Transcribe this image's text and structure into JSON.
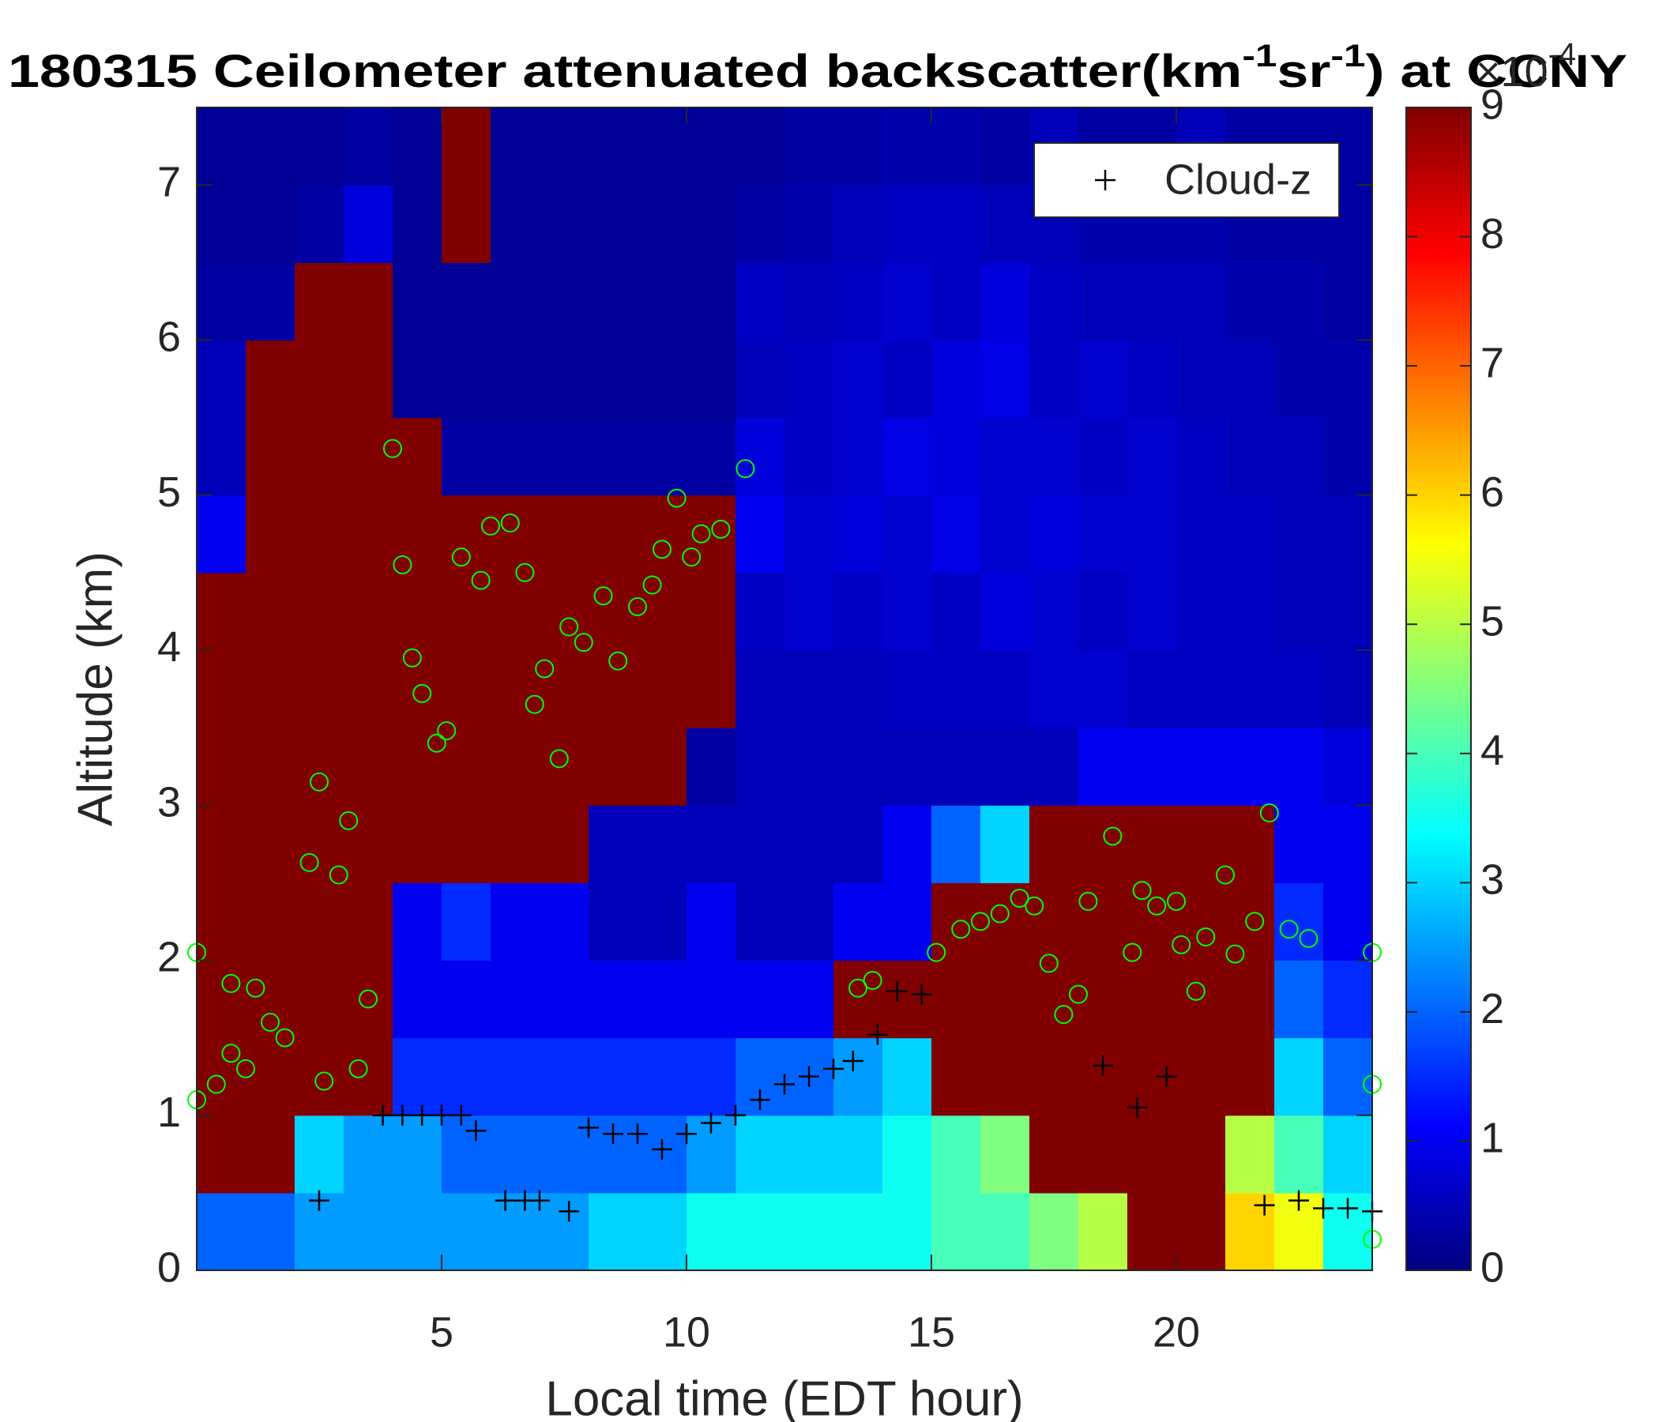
{
  "chart_data": {
    "type": "heatmap",
    "title_parts": [
      "180315 Ceilometer attenuated backscatter(km",
      "-1",
      "sr",
      "-1",
      ") at CCNY"
    ],
    "xlabel": "Local time (EDT hour)",
    "ylabel": "Altitude (km)",
    "xlim": [
      0,
      24
    ],
    "ylim": [
      0,
      7.5
    ],
    "xticks": [
      5,
      10,
      15,
      20
    ],
    "yticks": [
      0,
      1,
      2,
      3,
      4,
      5,
      6,
      7
    ],
    "clim": [
      0,
      9
    ],
    "cticks": [
      0,
      1,
      2,
      3,
      4,
      5,
      6,
      7,
      8,
      9
    ],
    "colorbar_exponent": [
      "×10",
      "-4"
    ],
    "colormap": "jet",
    "legend": "upper right",
    "xbins": [
      0,
      1,
      2,
      3,
      4,
      5,
      6,
      7,
      8,
      9,
      10,
      11,
      12,
      13,
      14,
      15,
      16,
      17,
      18,
      19,
      20,
      21,
      22,
      23,
      24
    ],
    "ybins": [
      0,
      0.5,
      1,
      1.5,
      2,
      2.5,
      3,
      3.5,
      4,
      4.5,
      5,
      5.5,
      6,
      6.5,
      7,
      7.5
    ],
    "z": [
      [
        2,
        2,
        2.5,
        2.5,
        2.5,
        2.5,
        2.5,
        2.5,
        3,
        3,
        3.5,
        3.5,
        3.5,
        3.5,
        3.5,
        4,
        4,
        4.5,
        5,
        9,
        9,
        6,
        5.5,
        3.5
      ],
      [
        9,
        9,
        3,
        2.5,
        2.5,
        2,
        2,
        2,
        2,
        2,
        2.5,
        3,
        3,
        3,
        3.5,
        4,
        4.5,
        9,
        9,
        9,
        9,
        5,
        4,
        3
      ],
      [
        9,
        9,
        9,
        9,
        1.5,
        1.5,
        1.5,
        1.5,
        1.5,
        1.5,
        1.5,
        2,
        2,
        2.5,
        3,
        9,
        9,
        9,
        9,
        9,
        9,
        9,
        3,
        2
      ],
      [
        9,
        9,
        9,
        9,
        1,
        1,
        1,
        1,
        1,
        1,
        1,
        1,
        1,
        9,
        9,
        9,
        9,
        9,
        9,
        9,
        9,
        9,
        2,
        1.5
      ],
      [
        9,
        9,
        9,
        9,
        1,
        1.5,
        1,
        1,
        0.5,
        0.5,
        1,
        0.5,
        0.5,
        1,
        1,
        9,
        9,
        9,
        9,
        9,
        9,
        9,
        1.5,
        1
      ],
      [
        9,
        9,
        9,
        9,
        9,
        9,
        9,
        9,
        0.5,
        0.5,
        0.5,
        0.5,
        0.5,
        0.5,
        1,
        2,
        3,
        9,
        9,
        9,
        9,
        9,
        1,
        1
      ],
      [
        9,
        9,
        9,
        9,
        9,
        9,
        9,
        9,
        9,
        9,
        0.3,
        0.5,
        0.5,
        0.5,
        0.5,
        0.5,
        0.5,
        0.5,
        1,
        1,
        1,
        1,
        1,
        0.8
      ],
      [
        9,
        9,
        9,
        9,
        9,
        9,
        9,
        9,
        9,
        9,
        9,
        0.5,
        0.5,
        0.5,
        0.6,
        0.6,
        0.6,
        0.7,
        0.7,
        0.6,
        0.6,
        0.6,
        0.6,
        0.5
      ],
      [
        9,
        9,
        9,
        9,
        9,
        9,
        9,
        9,
        9,
        9,
        9,
        0.6,
        0.7,
        0.6,
        0.7,
        0.6,
        0.8,
        0.7,
        0.6,
        0.7,
        0.6,
        0.6,
        0.5,
        0.5
      ],
      [
        1,
        9,
        9,
        9,
        9,
        9,
        9,
        9,
        9,
        9,
        9,
        1,
        0.7,
        0.8,
        0.7,
        0.9,
        0.7,
        0.8,
        0.7,
        0.7,
        0.6,
        0.6,
        0.5,
        0.5
      ],
      [
        0.5,
        9,
        9,
        9,
        9,
        0.3,
        0.3,
        0.3,
        0.3,
        0.3,
        0.3,
        0.8,
        0.6,
        0.7,
        0.9,
        0.8,
        0.7,
        0.7,
        0.6,
        0.7,
        0.6,
        0.5,
        0.5,
        0.4
      ],
      [
        0.5,
        9,
        9,
        9,
        0.2,
        0.2,
        0.2,
        0.2,
        0.2,
        0.2,
        0.2,
        0.5,
        0.6,
        0.7,
        0.6,
        0.8,
        0.9,
        0.6,
        0.7,
        0.6,
        0.5,
        0.5,
        0.4,
        0.4
      ],
      [
        0.3,
        0.3,
        9,
        9,
        0.2,
        0.2,
        0.2,
        0.2,
        0.2,
        0.2,
        0.2,
        0.6,
        0.5,
        0.6,
        0.7,
        0.6,
        0.8,
        0.6,
        0.5,
        0.5,
        0.5,
        0.4,
        0.4,
        0.3
      ],
      [
        0.2,
        0.2,
        0.3,
        0.8,
        0.2,
        9,
        0.2,
        0.2,
        0.2,
        0.2,
        0.2,
        0.3,
        0.4,
        0.5,
        0.6,
        0.6,
        0.5,
        0.5,
        0.4,
        0.4,
        0.4,
        0.3,
        0.3,
        0.3
      ],
      [
        0.2,
        0.2,
        0.2,
        0.3,
        0.2,
        9,
        0.2,
        0.2,
        0.2,
        0.2,
        0.2,
        0.2,
        0.3,
        0.3,
        0.4,
        0.4,
        0.3,
        0.5,
        0.3,
        0.3,
        0.5,
        0.3,
        0.3,
        0.3
      ]
    ],
    "series": [
      {
        "name": "Cloud-z",
        "marker": "+",
        "color": "#000000",
        "x": [
          2.5,
          3.8,
          4.2,
          4.6,
          5,
          5.4,
          5.7,
          6.3,
          6.7,
          7,
          7.6,
          8,
          8.5,
          9,
          9.5,
          10,
          10.5,
          11,
          11.5,
          12,
          12.5,
          13,
          13.4,
          13.9,
          14.3,
          14.8,
          18.5,
          19.2,
          19.8,
          21.8,
          22.5,
          23,
          23.5,
          24
        ],
        "y": [
          0.45,
          1,
          1,
          1,
          1,
          1,
          0.9,
          0.45,
          0.45,
          0.45,
          0.38,
          0.92,
          0.88,
          0.88,
          0.78,
          0.88,
          0.95,
          1,
          1.1,
          1.2,
          1.25,
          1.3,
          1.35,
          1.52,
          1.8,
          1.78,
          1.32,
          1.05,
          1.25,
          0.42,
          0.45,
          0.4,
          0.4,
          0.38
        ]
      },
      {
        "marker": "o",
        "color": "#00ff00",
        "x": [
          0,
          0,
          0.4,
          0.7,
          0.7,
          1,
          1.2,
          1.5,
          1.8,
          2.3,
          2.5,
          2.6,
          2.9,
          3.1,
          3.3,
          3.5,
          4,
          4.2,
          4.4,
          4.6,
          4.9,
          5.1,
          5.4,
          5.8,
          6,
          6.4,
          6.7,
          6.9,
          7.1,
          7.4,
          7.6,
          7.9,
          8.3,
          8.6,
          9,
          9.3,
          9.5,
          9.8,
          10.1,
          10.3,
          10.7,
          11.2,
          13.5,
          13.8,
          15.1,
          15.6,
          16,
          16.4,
          16.8,
          17.1,
          17.4,
          17.7,
          18,
          18.2,
          18.7,
          19.1,
          19.3,
          19.6,
          20,
          20.1,
          20.4,
          20.6,
          21,
          21.2,
          21.6,
          21.9,
          22.3,
          22.7,
          24,
          24,
          24
        ],
        "y": [
          2.05,
          1.1,
          1.2,
          1.4,
          1.85,
          1.3,
          1.82,
          1.6,
          1.5,
          2.63,
          3.15,
          1.22,
          2.55,
          2.9,
          1.3,
          1.75,
          5.3,
          4.55,
          3.95,
          3.72,
          3.4,
          3.48,
          4.6,
          4.45,
          4.8,
          4.82,
          4.5,
          3.65,
          3.88,
          3.3,
          4.15,
          4.05,
          4.35,
          3.93,
          4.28,
          4.42,
          4.65,
          4.98,
          4.6,
          4.75,
          4.78,
          5.17,
          1.82,
          1.87,
          2.05,
          2.2,
          2.25,
          2.3,
          2.4,
          2.35,
          1.98,
          1.65,
          1.78,
          2.38,
          2.8,
          2.05,
          2.45,
          2.35,
          2.38,
          2.1,
          1.8,
          2.15,
          2.55,
          2.04,
          2.25,
          2.95,
          2.2,
          2.14,
          2.05,
          1.2,
          0.2
        ]
      }
    ]
  }
}
